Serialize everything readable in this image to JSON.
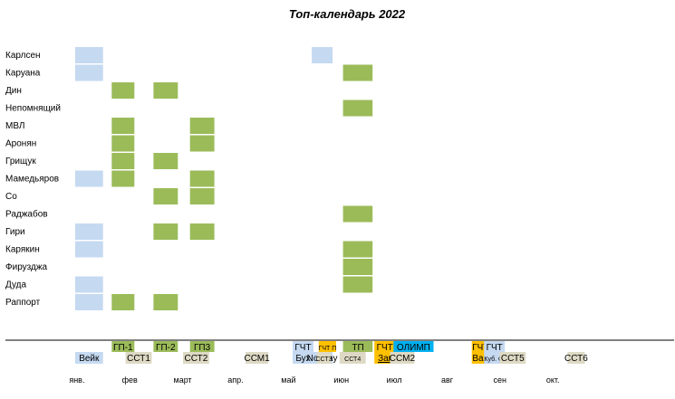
{
  "chart_data": {
    "type": "table",
    "title": "Топ-календарь 2022",
    "players": [
      "Карлсен",
      "Каруана",
      "Дин",
      "Непомнящий",
      "МВЛ",
      "Аронян",
      "Грищук",
      "Мамедьяров",
      "Со",
      "Раджабов",
      "Гири",
      "Карякин",
      "Фирузджа",
      "Дуда",
      "Раппорт"
    ],
    "events": [
      {
        "id": "wijk",
        "label": "Вейк",
        "start": "2022-01-14",
        "end": "2022-01-30",
        "color": "#c5d9f1",
        "players": [
          "Карлсен",
          "Каруана",
          "Мамедьяров",
          "Гири",
          "Карякин",
          "Дуда",
          "Раппорт"
        ]
      },
      {
        "id": "gp1",
        "label": "ГП-1",
        "start": "2022-02-04",
        "end": "2022-02-17",
        "color": "#9bbb59",
        "players": [
          "Дин",
          "МВЛ",
          "Аронян",
          "Грищук",
          "Мамедьяров",
          "Раппорт"
        ]
      },
      {
        "id": "gp2",
        "label": "ГП-2",
        "start": "2022-02-28",
        "end": "2022-03-14",
        "color": "#9bbb59",
        "players": [
          "Дин",
          "Грищук",
          "Со",
          "Гири",
          "Раппорт"
        ]
      },
      {
        "id": "gp3",
        "label": "ГП3",
        "start": "2022-03-21",
        "end": "2022-04-04",
        "color": "#9bbb59",
        "players": [
          "МВЛ",
          "Аронян",
          "Мамедьяров",
          "Со",
          "Гири"
        ]
      },
      {
        "id": "gct_buh",
        "label": "ГЧТ",
        "sublabel": "Бух",
        "start": "2022-05-19",
        "end": "2022-05-31",
        "color": "#c5d9f1",
        "players": []
      },
      {
        "id": "gct_p",
        "label": "ГЧТ П",
        "start": "2022-06-03",
        "end": "2022-06-13",
        "color": "#ffc000",
        "players": []
      },
      {
        "id": "norway",
        "label": "Norway",
        "start": "2022-05-30",
        "end": "2022-06-11",
        "color": "#c5d9f1",
        "players": [
          "Карлсен"
        ]
      },
      {
        "id": "tp",
        "label": "ТП",
        "start": "2022-06-17",
        "end": "2022-07-04",
        "color": "#9bbb59",
        "players": [
          "Каруана",
          "Непомнящий",
          "Раджабов",
          "Карякин",
          "Фирузджа",
          "Дуда"
        ]
      },
      {
        "id": "gct_zag",
        "label": "ГЧТ",
        "sublabel": "Заг",
        "start": "2022-07-05",
        "end": "2022-07-17",
        "color": "#ffc000",
        "players": []
      },
      {
        "id": "olymp",
        "label": "ОЛИМП",
        "start": "2022-07-16",
        "end": "2022-08-08",
        "color": "#00b0f0",
        "players": []
      },
      {
        "id": "gct_var",
        "label": "ГЧТ",
        "sublabel": "Вар",
        "start": "2022-08-30",
        "end": "2022-09-09",
        "color": "#ffc000",
        "players": []
      },
      {
        "id": "gct_kub",
        "label": "ГЧТ",
        "sublabel": "Куб. С.",
        "start": "2022-09-06",
        "end": "2022-09-18",
        "color": "#c5d9f1",
        "players": []
      }
    ],
    "series_labels": [
      {
        "label": "ССТ1",
        "start": "2022-02-12",
        "end": "2022-02-27",
        "color": "#ddd9c4"
      },
      {
        "label": "ССТ2",
        "start": "2022-03-17",
        "end": "2022-04-01",
        "color": "#ddd9c4"
      },
      {
        "label": "ССМ1",
        "start": "2022-04-22",
        "end": "2022-05-05",
        "color": "#ddd9c4"
      },
      {
        "label": "ССТ3",
        "start": "2022-06-02",
        "end": "2022-06-10",
        "color": "#ddd9c4"
      },
      {
        "label": "ССТ4",
        "start": "2022-06-15",
        "end": "2022-06-30",
        "color": "#ddd9c4"
      },
      {
        "label": "ССМ2",
        "start": "2022-07-14",
        "end": "2022-07-28",
        "color": "#ddd9c4"
      },
      {
        "label": "ССТ5",
        "start": "2022-09-15",
        "end": "2022-09-30",
        "color": "#ddd9c4"
      },
      {
        "label": "ССТ6",
        "start": "2022-10-24",
        "end": "2022-11-03",
        "color": "#ddd9c4"
      }
    ],
    "months": [
      "янв.",
      "фев",
      "март",
      "апр.",
      "май",
      "июн",
      "июл",
      "авг",
      "сен",
      "окт."
    ]
  }
}
